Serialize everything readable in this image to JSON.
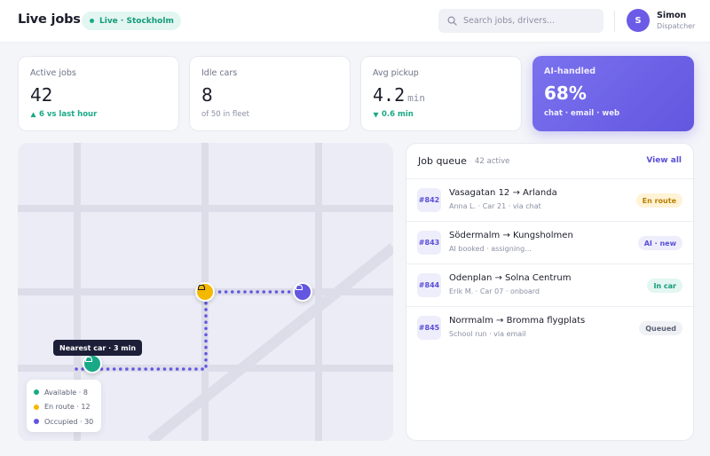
{
  "header": {
    "title": "Live jobs",
    "live_badge": "Live · Stockholm",
    "search_placeholder": "Search jobs, drivers...",
    "user": {
      "initial": "S",
      "name": "Simon",
      "role": "Dispatcher"
    }
  },
  "stats": [
    {
      "label": "Active jobs",
      "value": "42",
      "sub": "6 vs last hour",
      "sub_icon": "up-triangle-icon",
      "sub_color": "#19a987"
    },
    {
      "label": "Idle cars",
      "value": "8",
      "sub": "of 50 in fleet"
    },
    {
      "label": "Avg pickup",
      "value": "4.2",
      "unit": "min",
      "sub": "0.6 min",
      "sub_icon": "down-triangle-icon",
      "sub_color": "#19a987"
    },
    {
      "label": "AI-handled",
      "value": "68%",
      "sub": "chat · email · web"
    }
  ],
  "map": {
    "tooltip": "Nearest car · 3 min",
    "legend": [
      {
        "label": "Available · 8",
        "color": "#19a987"
      },
      {
        "label": "En route · 12",
        "color": "#f5b800"
      },
      {
        "label": "Occupied · 30",
        "color": "#6356e0"
      }
    ],
    "colors": {
      "available": "#19a987",
      "en_route": "#f5b800",
      "occupied": "#6356e0",
      "route": "#6356e0"
    }
  },
  "queue": {
    "title": "Job queue",
    "count": "42 active",
    "view_all": "View all",
    "jobs": [
      {
        "id": "#842",
        "route": "Vasagatan 12 → Arlanda",
        "meta": "Anna L. · Car 21 · via chat",
        "status": "En route",
        "status_bg": "#fff3d6",
        "status_fg": "#b97f00"
      },
      {
        "id": "#843",
        "route": "Södermalm → Kungsholmen",
        "meta": "AI booked · assigning...",
        "status": "AI · new",
        "status_bg": "#eeedfb",
        "status_fg": "#5a4fd8"
      },
      {
        "id": "#844",
        "route": "Odenplan → Solna Centrum",
        "meta": "Erik M. · Car 07 · onboard",
        "status": "In car",
        "status_bg": "#e3f6f1",
        "status_fg": "#139a7a"
      },
      {
        "id": "#845",
        "route": "Norrmalm → Bromma flygplats",
        "meta": "School run · via email",
        "status": "Queued",
        "status_bg": "#f0f1f5",
        "status_fg": "#5d6176"
      }
    ]
  }
}
